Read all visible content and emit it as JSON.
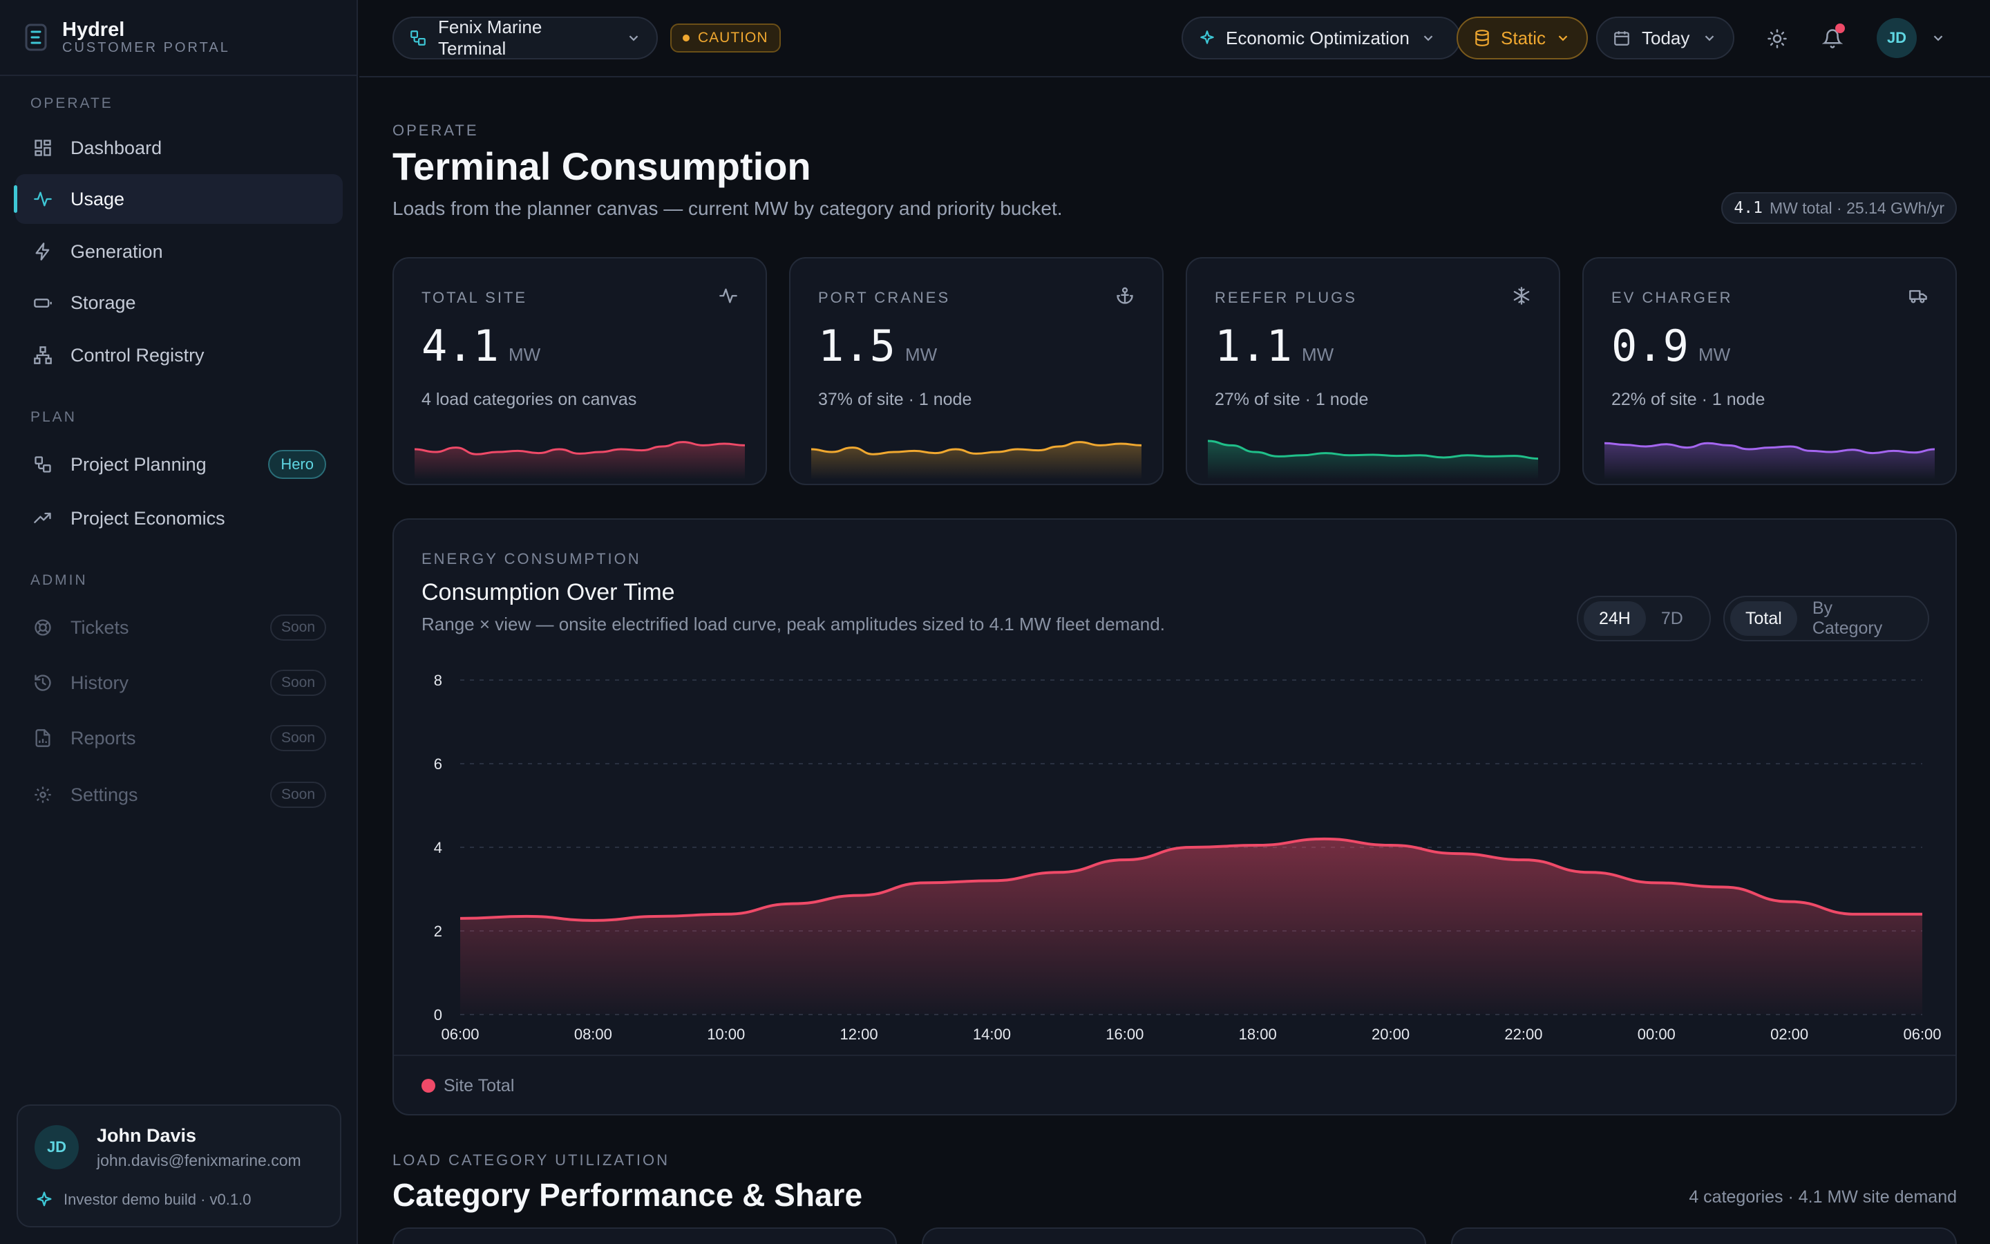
{
  "brand": {
    "name": "Hydrel",
    "sub": "CUSTOMER PORTAL"
  },
  "sidebar": {
    "sections": [
      "OPERATE",
      "PLAN",
      "ADMIN"
    ],
    "items": [
      {
        "label": "Dashboard",
        "icon": "grid-icon"
      },
      {
        "label": "Usage",
        "icon": "activity-icon",
        "active": true
      },
      {
        "label": "Generation",
        "icon": "bolt-icon"
      },
      {
        "label": "Storage",
        "icon": "battery-icon"
      },
      {
        "label": "Control Registry",
        "icon": "network-icon"
      },
      {
        "label": "Project Planning",
        "icon": "workflow-icon",
        "badge": "Hero"
      },
      {
        "label": "Project Economics",
        "icon": "trending-up-icon"
      },
      {
        "label": "Tickets",
        "icon": "lifebuoy-icon",
        "badge": "Soon"
      },
      {
        "label": "History",
        "icon": "history-icon",
        "badge": "Soon"
      },
      {
        "label": "Reports",
        "icon": "report-icon",
        "badge": "Soon"
      },
      {
        "label": "Settings",
        "icon": "gear-icon",
        "badge": "Soon"
      }
    ]
  },
  "user": {
    "initials": "JD",
    "name": "John Davis",
    "email": "john.davis@fenixmarine.com",
    "build": "Investor demo build · v0.1.0"
  },
  "topbar": {
    "site": "Fenix Marine Terminal",
    "status": "CAUTION",
    "mode": "Economic Optimization",
    "data_source": "Static",
    "range": "Today",
    "avatar_initials": "JD",
    "status_color": "#f0a830",
    "accent": "#3ec7d6"
  },
  "header": {
    "eyebrow": "OPERATE",
    "title": "Terminal Consumption",
    "subtitle": "Loads from the planner canvas — current MW by category and priority bucket.",
    "total_value": "4.1",
    "total_rest": "MW total · 25.14 GWh/yr"
  },
  "stats": [
    {
      "label": "TOTAL SITE",
      "value": "4.1",
      "unit": "MW",
      "desc": "4 load categories on canvas",
      "icon": "activity-icon",
      "color": "#ef4a68"
    },
    {
      "label": "PORT CRANES",
      "value": "1.5",
      "unit": "MW",
      "desc": "37% of site · 1 node",
      "icon": "anchor-icon",
      "color": "#f0a830"
    },
    {
      "label": "REEFER PLUGS",
      "value": "1.1",
      "unit": "MW",
      "desc": "27% of site · 1 node",
      "icon": "snowflake-icon",
      "color": "#20c08a"
    },
    {
      "label": "EV CHARGER",
      "value": "0.9",
      "unit": "MW",
      "desc": "22% of site · 1 node",
      "icon": "truck-icon",
      "color": "#a466f0"
    }
  ],
  "chart": {
    "eyebrow": "ENERGY CONSUMPTION",
    "title": "Consumption Over Time",
    "subtitle": "Range × view — onsite electrified load curve, peak amplitudes sized to 4.1 MW fleet demand.",
    "range_toggle": [
      "24H",
      "7D"
    ],
    "view_toggle": [
      "Total",
      "By Category"
    ],
    "legend": "Site Total"
  },
  "chart_data": {
    "type": "area",
    "x_ticks": [
      "06:00",
      "08:00",
      "10:00",
      "12:00",
      "14:00",
      "16:00",
      "18:00",
      "20:00",
      "22:00",
      "00:00",
      "02:00",
      "06:00"
    ],
    "y_ticks": [
      0,
      2,
      4,
      6,
      8
    ],
    "ylim": [
      0,
      8
    ],
    "grid": true,
    "legend_placement": "bottom-left",
    "series": [
      {
        "name": "Site Total",
        "color": "#ef4a68",
        "values": [
          2.3,
          2.35,
          2.25,
          2.35,
          2.4,
          2.65,
          2.85,
          3.15,
          3.2,
          3.4,
          3.7,
          4.0,
          4.05,
          4.2,
          4.05,
          3.85,
          3.7,
          3.4,
          3.15,
          3.05,
          2.7,
          2.4,
          2.4
        ]
      }
    ]
  },
  "sparklines": [
    [
      0.55,
      0.5,
      0.58,
      0.46,
      0.5,
      0.52,
      0.48,
      0.55,
      0.47,
      0.5,
      0.55,
      0.53,
      0.6,
      0.68,
      0.62,
      0.65,
      0.62
    ],
    [
      0.55,
      0.5,
      0.58,
      0.46,
      0.5,
      0.52,
      0.48,
      0.55,
      0.47,
      0.5,
      0.55,
      0.53,
      0.6,
      0.68,
      0.62,
      0.65,
      0.62
    ],
    [
      0.7,
      0.62,
      0.5,
      0.42,
      0.44,
      0.48,
      0.44,
      0.45,
      0.43,
      0.44,
      0.4,
      0.44,
      0.42,
      0.43,
      0.38
    ],
    [
      0.66,
      0.63,
      0.6,
      0.64,
      0.58,
      0.66,
      0.62,
      0.55,
      0.58,
      0.6,
      0.52,
      0.5,
      0.54,
      0.48,
      0.52,
      0.49,
      0.55
    ]
  ],
  "section2": {
    "eyebrow": "LOAD CATEGORY UTILIZATION",
    "title": "Category Performance & Share",
    "note": "4 categories · 4.1 MW site demand"
  }
}
